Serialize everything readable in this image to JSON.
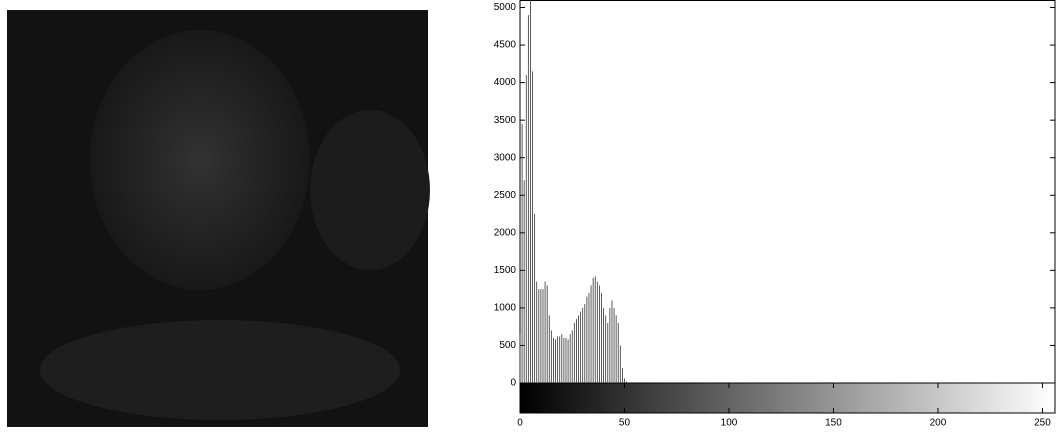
{
  "chart_data": {
    "type": "bar",
    "color": "#333333",
    "values": [
      650,
      3450,
      2700,
      4100,
      4900,
      5100,
      4150,
      2250,
      1350,
      1250,
      1250,
      1250,
      1350,
      1300,
      900,
      700,
      600,
      580,
      620,
      620,
      650,
      600,
      600,
      580,
      650,
      700,
      800,
      850,
      900,
      950,
      1000,
      1050,
      1150,
      1200,
      1300,
      1400,
      1420,
      1350,
      1300,
      1200,
      1000,
      900,
      800,
      1000,
      1100,
      1000,
      900,
      800,
      500,
      200,
      60,
      20,
      5,
      0,
      0,
      0,
      0,
      0,
      0,
      0,
      0,
      0,
      0,
      0,
      0,
      0,
      0,
      0,
      0,
      0,
      0,
      0,
      0,
      0,
      0,
      0,
      0,
      0,
      0,
      0,
      0,
      0,
      0,
      0,
      0,
      0,
      0,
      0,
      0,
      0,
      0,
      0,
      0,
      0,
      0,
      0,
      0,
      0,
      0,
      0,
      0,
      0,
      0,
      0,
      0,
      0,
      0,
      0,
      0,
      0,
      0,
      0,
      0,
      0,
      0,
      0,
      0,
      0,
      0,
      0,
      0,
      0,
      0,
      0,
      0,
      0,
      0,
      0,
      0,
      0,
      0,
      0,
      0,
      0,
      0,
      0,
      0,
      0,
      0,
      0,
      0,
      0,
      0,
      0,
      0,
      0,
      0,
      0,
      0,
      0,
      0,
      0,
      0,
      0,
      0,
      0,
      0,
      0,
      0,
      0,
      0,
      0,
      0,
      0,
      0,
      0,
      0,
      0,
      0,
      0,
      0,
      0,
      0,
      0,
      0,
      0,
      0,
      0,
      0,
      0,
      0,
      0,
      0,
      0,
      0,
      0,
      0,
      0,
      0,
      0,
      0,
      0,
      0,
      0,
      0,
      0,
      0,
      0,
      0,
      0,
      0,
      0,
      0,
      0,
      0,
      0,
      0,
      0,
      0,
      0,
      0,
      0,
      0,
      0,
      0,
      0,
      0,
      0,
      0,
      0,
      0,
      0,
      0,
      0,
      0,
      0,
      0,
      0,
      0,
      0,
      0,
      0,
      0,
      0,
      0,
      0,
      0,
      0,
      0,
      0,
      0,
      0,
      0,
      0,
      0,
      0,
      0,
      0,
      0,
      0,
      0,
      0,
      0,
      0,
      0,
      0
    ],
    "xlim": [
      0,
      256
    ],
    "xticks": [
      0,
      50,
      100,
      150,
      200,
      250
    ],
    "ylim": [
      0,
      5100
    ],
    "yticks": [
      0,
      500,
      1000,
      1500,
      2000,
      2500,
      3000,
      3500,
      4000,
      4500,
      5000
    ]
  }
}
